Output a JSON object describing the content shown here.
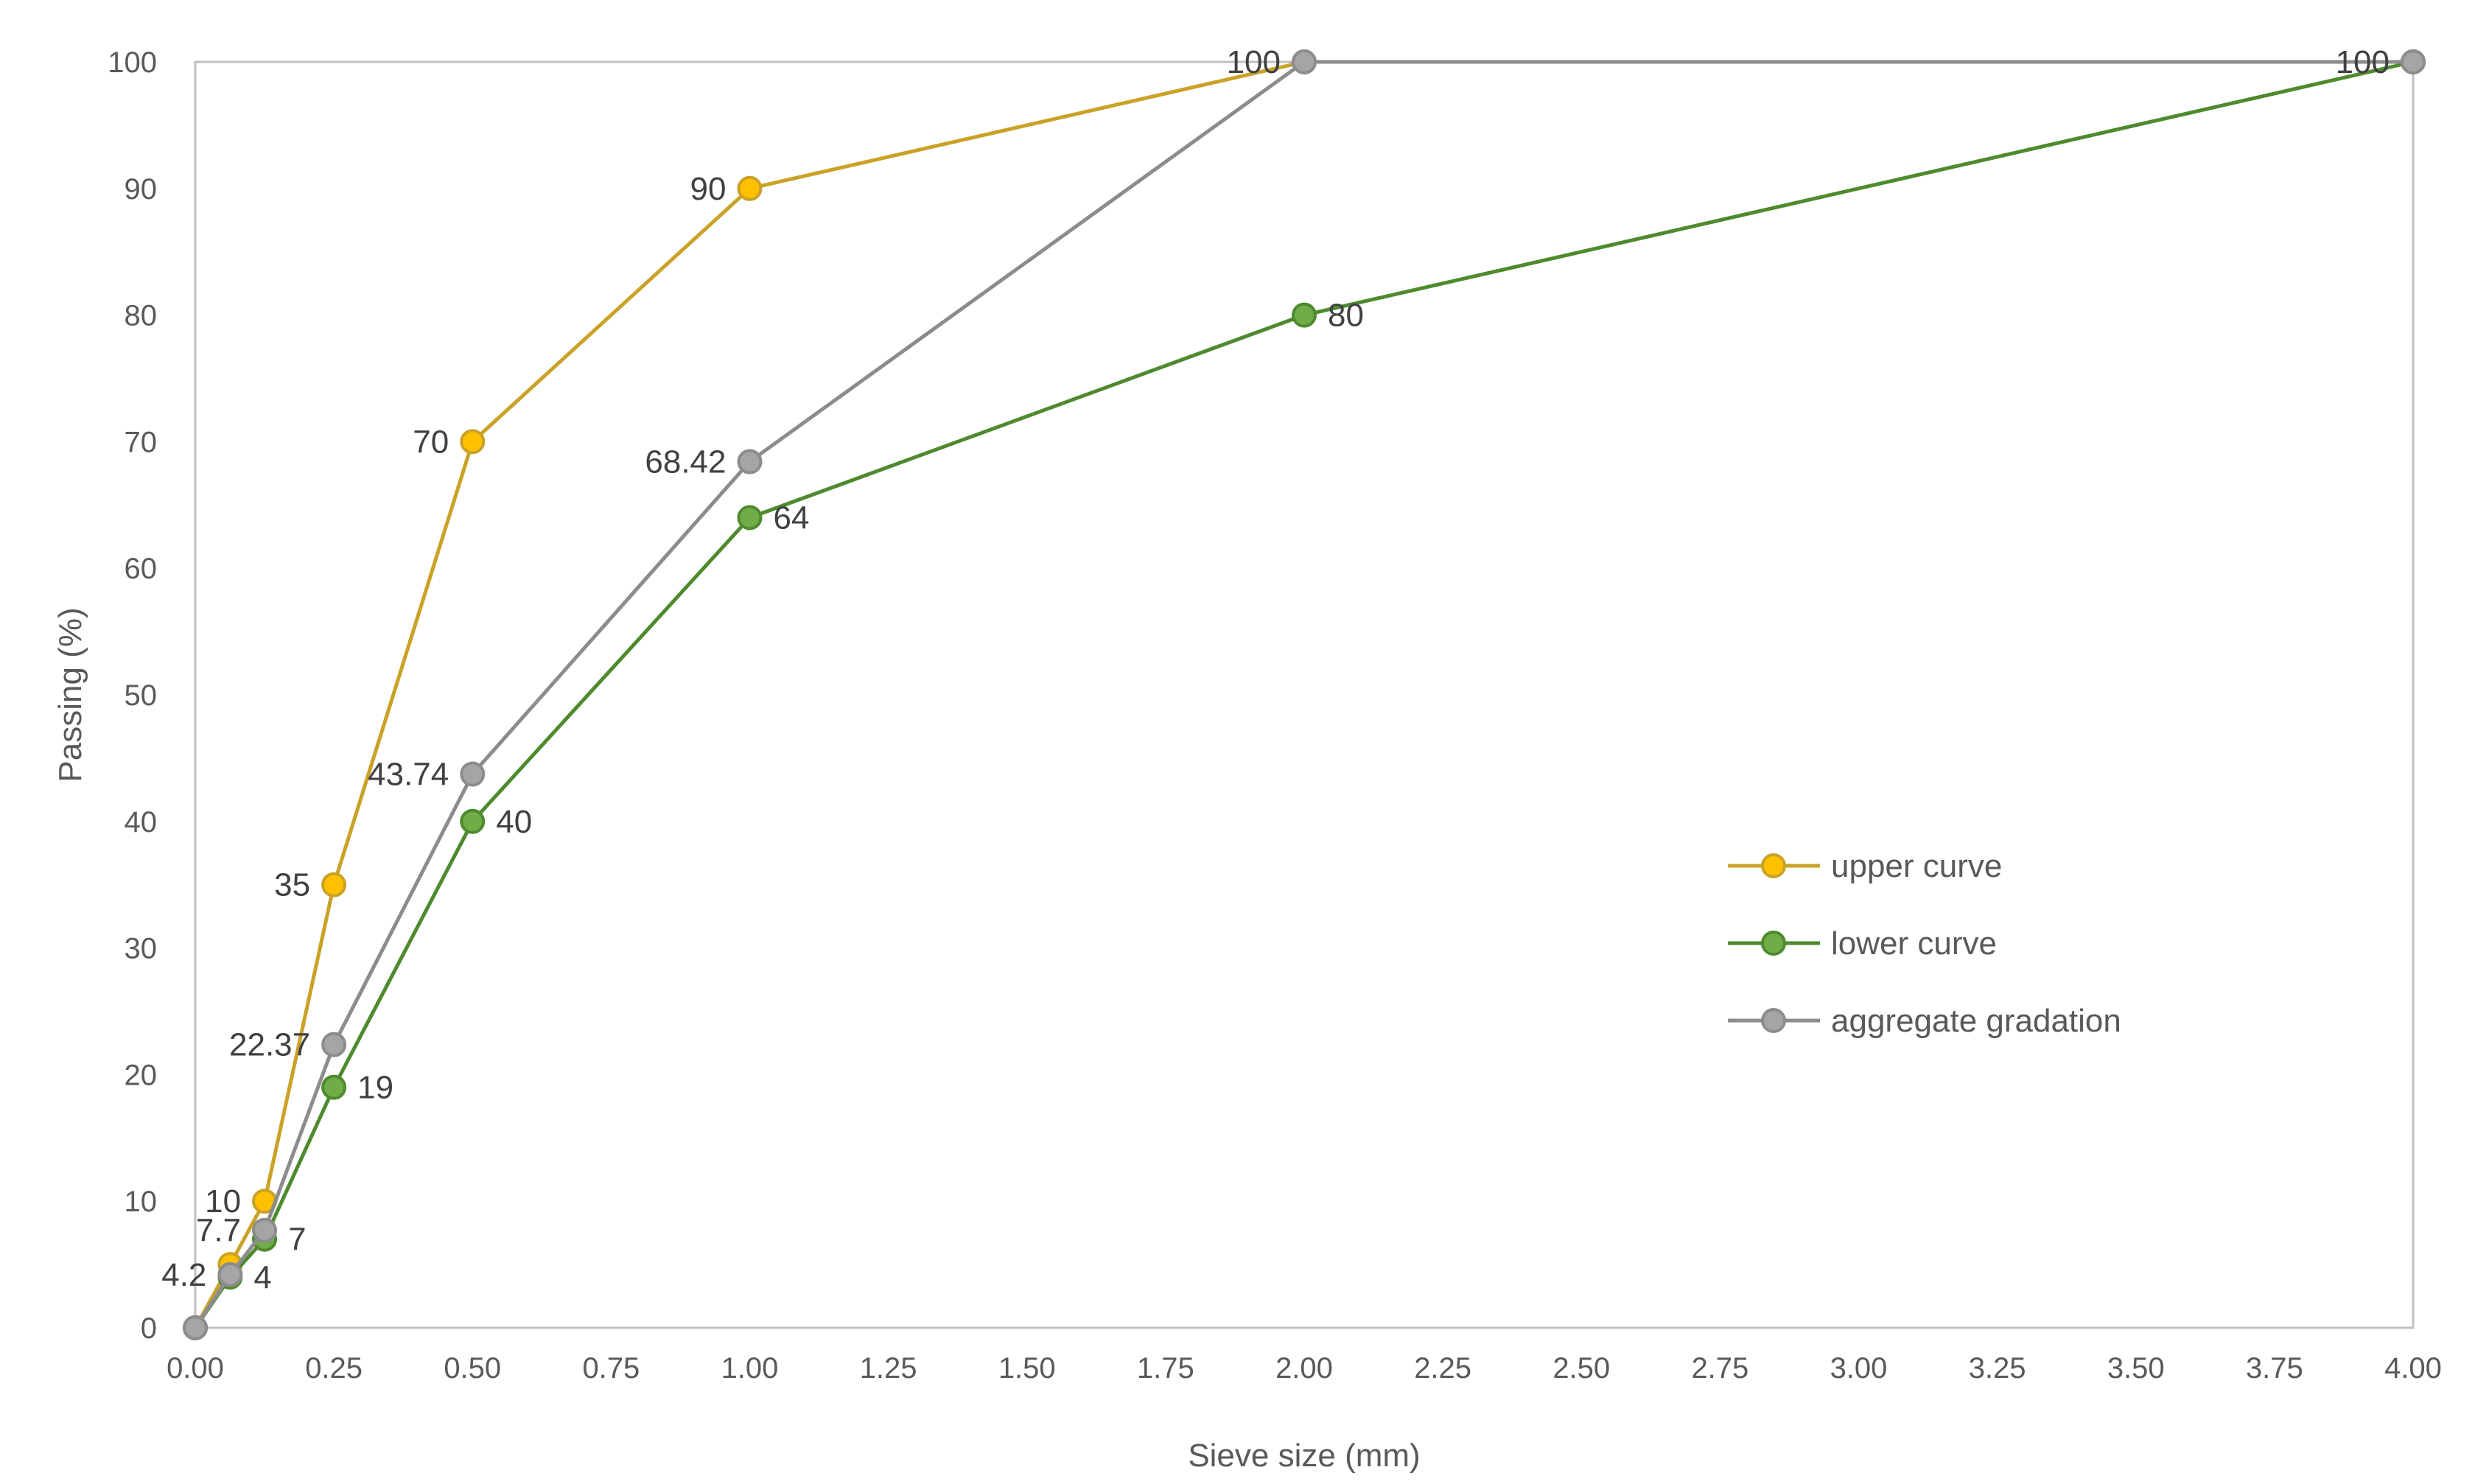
{
  "chart_data": {
    "type": "line",
    "title": "",
    "xlabel": "Sieve size (mm)",
    "ylabel": "Passing (%)",
    "xlim": [
      0,
      4
    ],
    "ylim": [
      0,
      100
    ],
    "x_ticks": [
      "0.00",
      "0.25",
      "0.50",
      "0.75",
      "1.00",
      "1.25",
      "1.50",
      "1.75",
      "2.00",
      "2.25",
      "2.50",
      "2.75",
      "3.00",
      "3.25",
      "3.50",
      "3.75",
      "4.00"
    ],
    "y_ticks": [
      "0",
      "10",
      "20",
      "30",
      "40",
      "50",
      "60",
      "70",
      "80",
      "90",
      "100"
    ],
    "grid": false,
    "markers": true,
    "legend_position": "right-middle",
    "series": [
      {
        "name": "upper curve",
        "color": "#C9A227",
        "marker_fill": "#FFC000",
        "points": [
          {
            "x": 0,
            "y": 0,
            "label": ""
          },
          {
            "x": 0.063,
            "y": 5,
            "label": ""
          },
          {
            "x": 0.125,
            "y": 10,
            "label": "10"
          },
          {
            "x": 0.25,
            "y": 35,
            "label": "35"
          },
          {
            "x": 0.5,
            "y": 70,
            "label": "70"
          },
          {
            "x": 1,
            "y": 90,
            "label": "90"
          },
          {
            "x": 2,
            "y": 100,
            "label": "100"
          },
          {
            "x": 4,
            "y": 100,
            "label": ""
          }
        ]
      },
      {
        "name": "lower curve",
        "color": "#4E8A2E",
        "marker_fill": "#70AD47",
        "points": [
          {
            "x": 0,
            "y": 0,
            "label": ""
          },
          {
            "x": 0.063,
            "y": 4,
            "label": "4"
          },
          {
            "x": 0.125,
            "y": 7,
            "label": "7"
          },
          {
            "x": 0.25,
            "y": 19,
            "label": "19"
          },
          {
            "x": 0.5,
            "y": 40,
            "label": "40"
          },
          {
            "x": 1,
            "y": 64,
            "label": "64"
          },
          {
            "x": 2,
            "y": 80,
            "label": "80"
          },
          {
            "x": 4,
            "y": 100,
            "label": ""
          }
        ]
      },
      {
        "name": "aggregate gradation",
        "color": "#8C8C8C",
        "marker_fill": "#A5A5A5",
        "points": [
          {
            "x": 0,
            "y": 0,
            "label": ""
          },
          {
            "x": 0.063,
            "y": 4.2,
            "label": "4.2"
          },
          {
            "x": 0.125,
            "y": 7.7,
            "label": "7.7"
          },
          {
            "x": 0.25,
            "y": 22.37,
            "label": "22.37"
          },
          {
            "x": 0.5,
            "y": 43.74,
            "label": "43.74"
          },
          {
            "x": 1,
            "y": 68.42,
            "label": "68.42"
          },
          {
            "x": 2,
            "y": 100,
            "label": ""
          },
          {
            "x": 4,
            "y": 100,
            "label": "100"
          }
        ]
      }
    ]
  }
}
